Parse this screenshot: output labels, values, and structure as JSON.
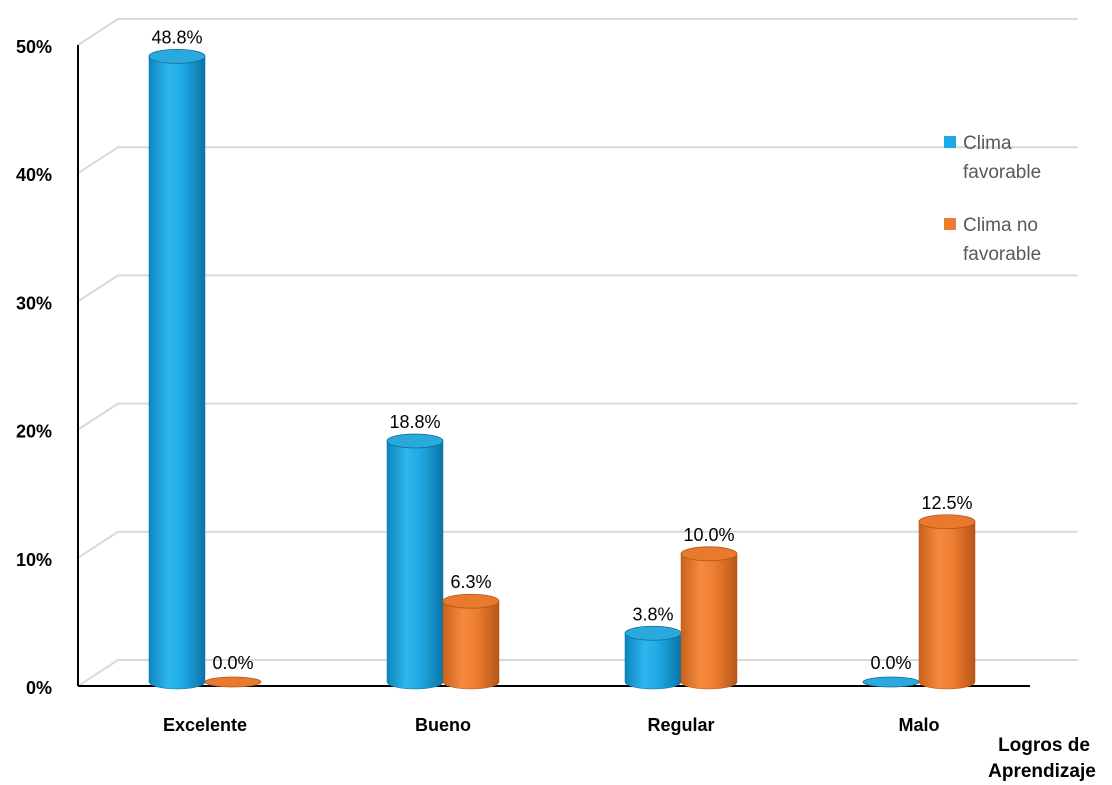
{
  "chart_data": {
    "type": "bar",
    "categories": [
      "Excelente",
      "Bueno",
      "Regular",
      "Malo"
    ],
    "series": [
      {
        "name": "Clima favorable",
        "values": [
          48.8,
          18.8,
          3.8,
          0.0
        ],
        "labels": [
          "48.8%",
          "18.8%",
          "3.8%",
          "0.0%"
        ],
        "color": "#1EA9E3"
      },
      {
        "name": "Clima no favorable",
        "values": [
          0.0,
          6.3,
          10.0,
          12.5
        ],
        "labels": [
          "0.0%",
          "6.3%",
          "10.0%",
          "12.5%"
        ],
        "color": "#ED7D31"
      }
    ],
    "ylim": [
      0,
      50
    ],
    "yticks": [
      "0%",
      "10%",
      "20%",
      "30%",
      "40%",
      "50%"
    ],
    "xlabel": "Logros de Aprendizaje",
    "ylabel": "",
    "grid": true,
    "legend_position": "right",
    "legend": [
      {
        "lines": [
          "Clima",
          "favorable"
        ]
      },
      {
        "lines": [
          "Clima no",
          "favorable"
        ]
      }
    ]
  }
}
